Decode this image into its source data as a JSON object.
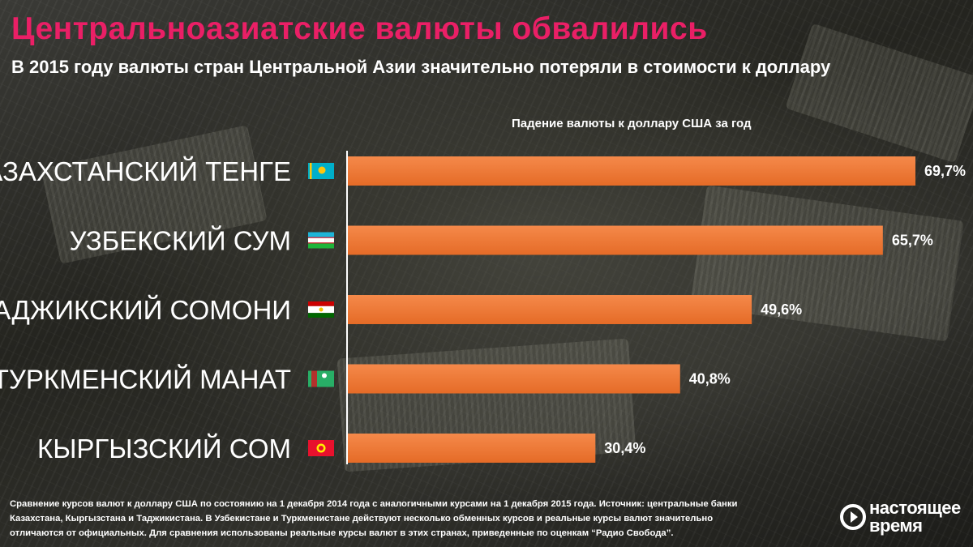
{
  "title": "Центральноазиатские валюты обвалились",
  "subtitle": "В 2015 году валюты стран Центральной Азии значительно потеряли в стоимости к доллару",
  "footnote": "Сравнение курсов валют к доллару США по состоянию на 1 декабря 2014 года с аналогичными курсами на 1 декабря 2015 года. Источник: центральные банки Казахстана, Кыргызстана и Таджикистана. В Узбекистане и Туркменистане действуют несколько обменных курсов и реальные курсы валют значительно отличаются от официальных. Для сравнения использованы реальные курсы валют в этих странах, приведенные по оценкам “Радио Свобода”.",
  "logo": {
    "line1": "настоящее",
    "line2": "время",
    "icon": "play-logo-icon"
  },
  "colors": {
    "title": "#ea1f66",
    "bar": "#f07a34",
    "text": "#ffffff"
  },
  "chart_data": {
    "type": "bar",
    "orientation": "horizontal",
    "title": "Падение валюты к доллару США за год",
    "categories": [
      "КАЗАХСТАНСКИЙ ТЕНГЕ",
      "УЗБЕКСКИЙ СУМ",
      "ТАДЖИКСКИЙ СОМОНИ",
      "ТУРКМЕНСКИЙ МАНАТ",
      "КЫРГЫЗСКИЙ СОМ"
    ],
    "flags": [
      "kazakhstan-flag-icon",
      "uzbekistan-flag-icon",
      "tajikistan-flag-icon",
      "turkmenistan-flag-icon",
      "kyrgyzstan-flag-icon"
    ],
    "values": [
      69.7,
      65.7,
      49.6,
      40.8,
      30.4
    ],
    "value_labels": [
      "69,7%",
      "65,7%",
      "49,6%",
      "40,8%",
      "30,4%"
    ],
    "unit": "%",
    "xlim": [
      0,
      69.7
    ],
    "grid": false,
    "legend": "none"
  }
}
